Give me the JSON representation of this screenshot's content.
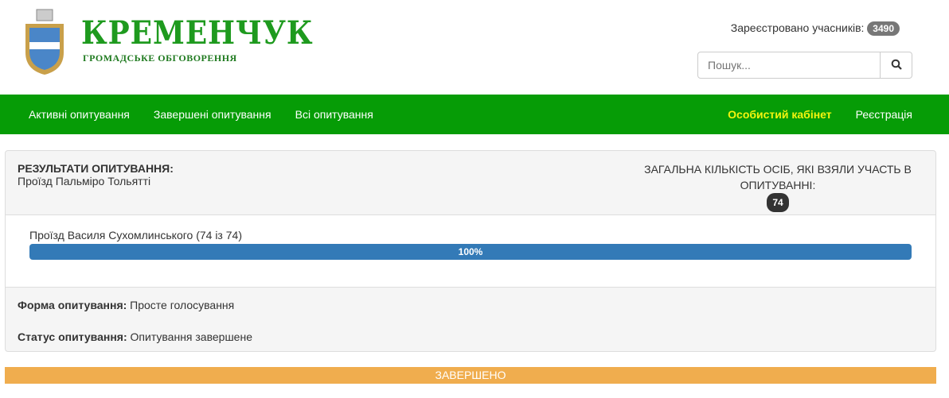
{
  "header": {
    "brand": "КРЕМЕНЧУК",
    "subtitle": "ГРОМАДСЬКЕ ОБГОВОРЕННЯ",
    "registered_label": "Зареєстровано учасників:",
    "registered_count": "3490",
    "search_placeholder": "Пошук..."
  },
  "nav": {
    "items": [
      {
        "label": "Активні опитування"
      },
      {
        "label": "Завершені опитування"
      },
      {
        "label": "Всі опитування"
      }
    ],
    "cabinet": "Особистий кабінет",
    "register": "Реєстрація"
  },
  "poll": {
    "results_title": "РЕЗУЛЬТАТИ ОПИТУВАННЯ:",
    "name": "Проїзд Пальміро Тольятті",
    "total_label": "ЗАГАЛЬНА КІЛЬКІСТЬ ОСІБ, ЯКІ ВЗЯЛИ УЧАСТЬ В ОПИТУВАННІ:",
    "total_count": "74",
    "options": [
      {
        "label": "Проїзд Василя Сухомлинського (74 із 74)",
        "percent_label": "100%",
        "percent": 100
      }
    ],
    "form_label": "Форма опитування:",
    "form_value": "Просте голосування",
    "status_label": "Статус опитування:",
    "status_value": "Опитування завершене"
  },
  "status_banner": "ЗАВЕРШЕНО",
  "colors": {
    "nav": "#069c06",
    "accent": "#f4f40f",
    "progress": "#337ab7",
    "banner": "#f0ad4e"
  }
}
